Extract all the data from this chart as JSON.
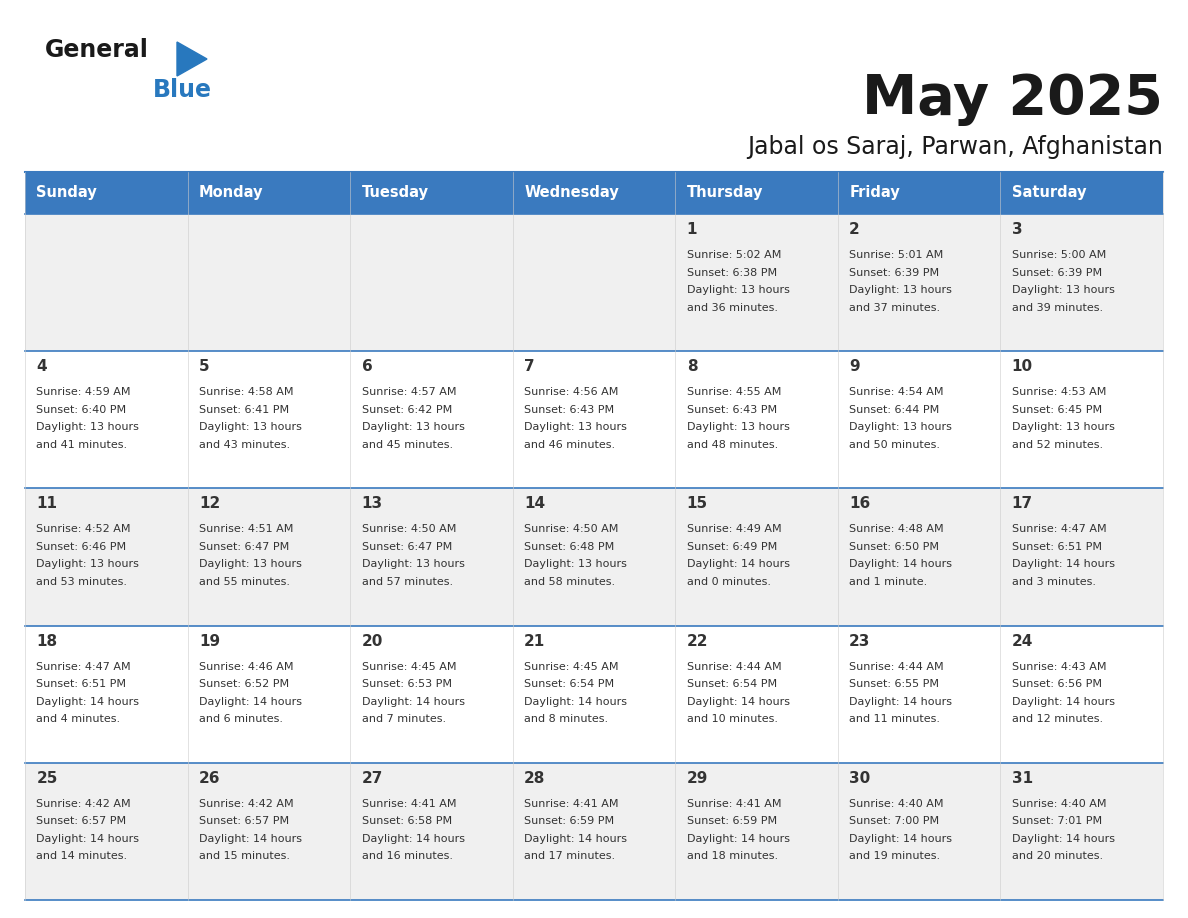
{
  "title": "May 2025",
  "subtitle": "Jabal os Saraj, Parwan, Afghanistan",
  "header_bg": "#3a7abf",
  "header_text_color": "#ffffff",
  "cell_bg_even": "#f0f0f0",
  "cell_bg_odd": "#ffffff",
  "border_color": "#3a7abf",
  "day_names": [
    "Sunday",
    "Monday",
    "Tuesday",
    "Wednesday",
    "Thursday",
    "Friday",
    "Saturday"
  ],
  "days": [
    {
      "day": 1,
      "col": 4,
      "row": 0,
      "sunrise": "5:02 AM",
      "sunset": "6:38 PM",
      "daylight": "13 hours\nand 36 minutes."
    },
    {
      "day": 2,
      "col": 5,
      "row": 0,
      "sunrise": "5:01 AM",
      "sunset": "6:39 PM",
      "daylight": "13 hours\nand 37 minutes."
    },
    {
      "day": 3,
      "col": 6,
      "row": 0,
      "sunrise": "5:00 AM",
      "sunset": "6:39 PM",
      "daylight": "13 hours\nand 39 minutes."
    },
    {
      "day": 4,
      "col": 0,
      "row": 1,
      "sunrise": "4:59 AM",
      "sunset": "6:40 PM",
      "daylight": "13 hours\nand 41 minutes."
    },
    {
      "day": 5,
      "col": 1,
      "row": 1,
      "sunrise": "4:58 AM",
      "sunset": "6:41 PM",
      "daylight": "13 hours\nand 43 minutes."
    },
    {
      "day": 6,
      "col": 2,
      "row": 1,
      "sunrise": "4:57 AM",
      "sunset": "6:42 PM",
      "daylight": "13 hours\nand 45 minutes."
    },
    {
      "day": 7,
      "col": 3,
      "row": 1,
      "sunrise": "4:56 AM",
      "sunset": "6:43 PM",
      "daylight": "13 hours\nand 46 minutes."
    },
    {
      "day": 8,
      "col": 4,
      "row": 1,
      "sunrise": "4:55 AM",
      "sunset": "6:43 PM",
      "daylight": "13 hours\nand 48 minutes."
    },
    {
      "day": 9,
      "col": 5,
      "row": 1,
      "sunrise": "4:54 AM",
      "sunset": "6:44 PM",
      "daylight": "13 hours\nand 50 minutes."
    },
    {
      "day": 10,
      "col": 6,
      "row": 1,
      "sunrise": "4:53 AM",
      "sunset": "6:45 PM",
      "daylight": "13 hours\nand 52 minutes."
    },
    {
      "day": 11,
      "col": 0,
      "row": 2,
      "sunrise": "4:52 AM",
      "sunset": "6:46 PM",
      "daylight": "13 hours\nand 53 minutes."
    },
    {
      "day": 12,
      "col": 1,
      "row": 2,
      "sunrise": "4:51 AM",
      "sunset": "6:47 PM",
      "daylight": "13 hours\nand 55 minutes."
    },
    {
      "day": 13,
      "col": 2,
      "row": 2,
      "sunrise": "4:50 AM",
      "sunset": "6:47 PM",
      "daylight": "13 hours\nand 57 minutes."
    },
    {
      "day": 14,
      "col": 3,
      "row": 2,
      "sunrise": "4:50 AM",
      "sunset": "6:48 PM",
      "daylight": "13 hours\nand 58 minutes."
    },
    {
      "day": 15,
      "col": 4,
      "row": 2,
      "sunrise": "4:49 AM",
      "sunset": "6:49 PM",
      "daylight": "14 hours\nand 0 minutes."
    },
    {
      "day": 16,
      "col": 5,
      "row": 2,
      "sunrise": "4:48 AM",
      "sunset": "6:50 PM",
      "daylight": "14 hours\nand 1 minute."
    },
    {
      "day": 17,
      "col": 6,
      "row": 2,
      "sunrise": "4:47 AM",
      "sunset": "6:51 PM",
      "daylight": "14 hours\nand 3 minutes."
    },
    {
      "day": 18,
      "col": 0,
      "row": 3,
      "sunrise": "4:47 AM",
      "sunset": "6:51 PM",
      "daylight": "14 hours\nand 4 minutes."
    },
    {
      "day": 19,
      "col": 1,
      "row": 3,
      "sunrise": "4:46 AM",
      "sunset": "6:52 PM",
      "daylight": "14 hours\nand 6 minutes."
    },
    {
      "day": 20,
      "col": 2,
      "row": 3,
      "sunrise": "4:45 AM",
      "sunset": "6:53 PM",
      "daylight": "14 hours\nand 7 minutes."
    },
    {
      "day": 21,
      "col": 3,
      "row": 3,
      "sunrise": "4:45 AM",
      "sunset": "6:54 PM",
      "daylight": "14 hours\nand 8 minutes."
    },
    {
      "day": 22,
      "col": 4,
      "row": 3,
      "sunrise": "4:44 AM",
      "sunset": "6:54 PM",
      "daylight": "14 hours\nand 10 minutes."
    },
    {
      "day": 23,
      "col": 5,
      "row": 3,
      "sunrise": "4:44 AM",
      "sunset": "6:55 PM",
      "daylight": "14 hours\nand 11 minutes."
    },
    {
      "day": 24,
      "col": 6,
      "row": 3,
      "sunrise": "4:43 AM",
      "sunset": "6:56 PM",
      "daylight": "14 hours\nand 12 minutes."
    },
    {
      "day": 25,
      "col": 0,
      "row": 4,
      "sunrise": "4:42 AM",
      "sunset": "6:57 PM",
      "daylight": "14 hours\nand 14 minutes."
    },
    {
      "day": 26,
      "col": 1,
      "row": 4,
      "sunrise": "4:42 AM",
      "sunset": "6:57 PM",
      "daylight": "14 hours\nand 15 minutes."
    },
    {
      "day": 27,
      "col": 2,
      "row": 4,
      "sunrise": "4:41 AM",
      "sunset": "6:58 PM",
      "daylight": "14 hours\nand 16 minutes."
    },
    {
      "day": 28,
      "col": 3,
      "row": 4,
      "sunrise": "4:41 AM",
      "sunset": "6:59 PM",
      "daylight": "14 hours\nand 17 minutes."
    },
    {
      "day": 29,
      "col": 4,
      "row": 4,
      "sunrise": "4:41 AM",
      "sunset": "6:59 PM",
      "daylight": "14 hours\nand 18 minutes."
    },
    {
      "day": 30,
      "col": 5,
      "row": 4,
      "sunrise": "4:40 AM",
      "sunset": "7:00 PM",
      "daylight": "14 hours\nand 19 minutes."
    },
    {
      "day": 31,
      "col": 6,
      "row": 4,
      "sunrise": "4:40 AM",
      "sunset": "7:01 PM",
      "daylight": "14 hours\nand 20 minutes."
    }
  ]
}
